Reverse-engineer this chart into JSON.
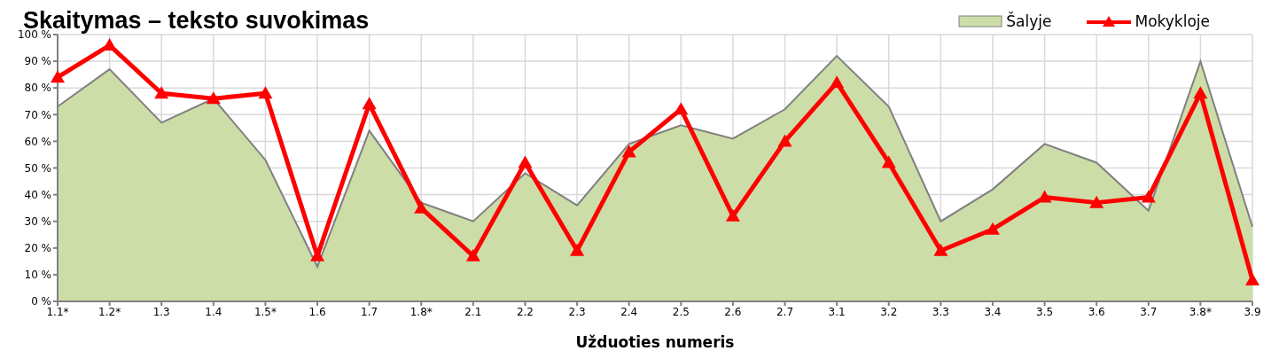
{
  "chart_data": {
    "type": "area",
    "title": "Skaitymas – teksto suvokimas",
    "xlabel": "Užduoties numeris",
    "categories": [
      "1.1*",
      "1.2*",
      "1.3",
      "1.4",
      "1.5*",
      "1.6",
      "1.7",
      "1.8*",
      "2.1",
      "2.2",
      "2.3",
      "2.4",
      "2.5",
      "2.6",
      "2.7",
      "3.1",
      "3.2",
      "3.3",
      "3.4",
      "3.5",
      "3.6",
      "3.7",
      "3.8*",
      "3.9"
    ],
    "series": [
      {
        "name": "Šalyje",
        "color": "#cddda8",
        "values": [
          73,
          87,
          67,
          76,
          53,
          13,
          64,
          37,
          30,
          48,
          36,
          59,
          66,
          61,
          72,
          92,
          73,
          30,
          42,
          59,
          52,
          34,
          90,
          28
        ]
      },
      {
        "name": "Mokykloje",
        "type": "line",
        "color": "#ff0000",
        "marker": "triangle",
        "values": [
          84,
          96,
          78,
          76,
          78,
          17,
          74,
          35,
          17,
          52,
          19,
          56,
          72,
          32,
          60,
          82,
          52,
          19,
          27,
          39,
          37,
          39,
          78,
          8
        ]
      }
    ],
    "ylim": [
      0,
      100
    ],
    "yticks": [
      {
        "value": 0,
        "label": "0 %"
      },
      {
        "value": 10,
        "label": "10 %"
      },
      {
        "value": 20,
        "label": "20 %"
      },
      {
        "value": 30,
        "label": "30 %"
      },
      {
        "value": 40,
        "label": "40 %"
      },
      {
        "value": 50,
        "label": "50 %"
      },
      {
        "value": 60,
        "label": "60 %"
      },
      {
        "value": 70,
        "label": "70 %"
      },
      {
        "value": 80,
        "label": "80 %"
      },
      {
        "value": 90,
        "label": "90 %"
      },
      {
        "value": 100,
        "label": "100 %"
      }
    ],
    "grid": true,
    "legend": "top right"
  }
}
